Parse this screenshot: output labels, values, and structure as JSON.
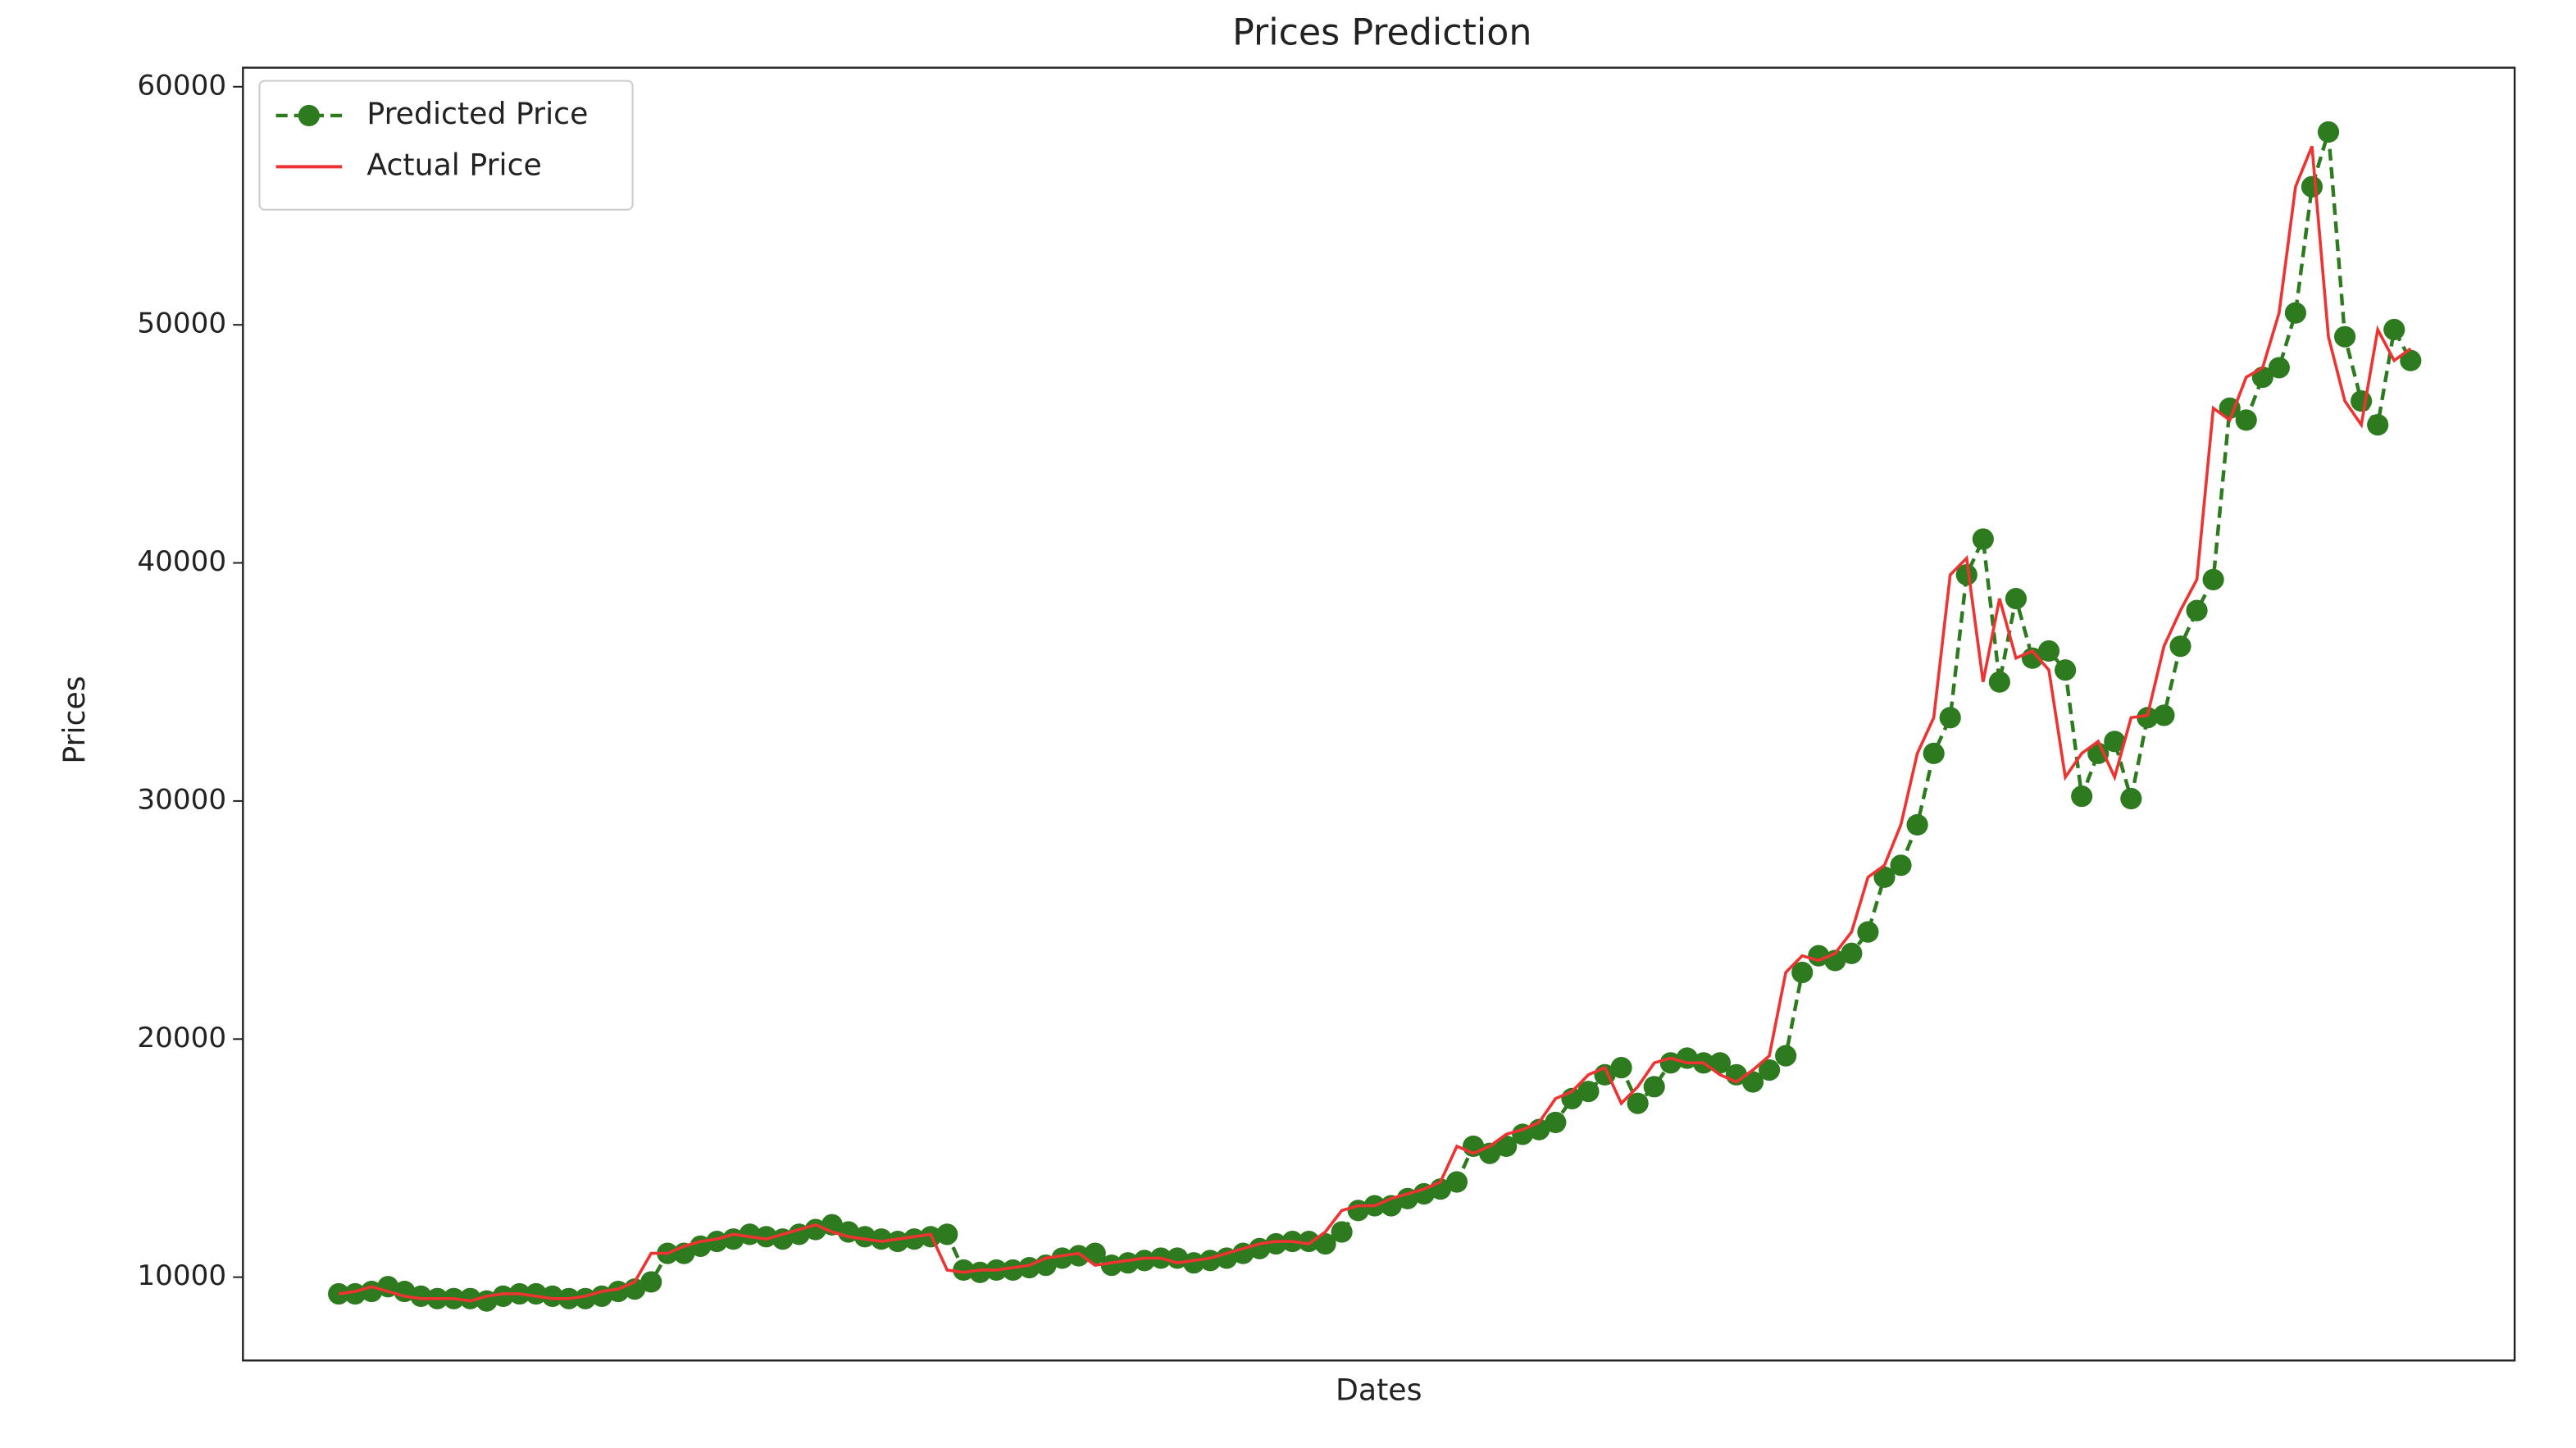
{
  "chart_data": {
    "type": "line",
    "title": "Prices Prediction",
    "xlabel": "Dates",
    "ylabel": "Prices",
    "categories": [
      null,
      null,
      null,
      null,
      null,
      null,
      null,
      null,
      null,
      null,
      null,
      null,
      null,
      null,
      null,
      null,
      null,
      null,
      null,
      null,
      null,
      null,
      null,
      null,
      null,
      null,
      null,
      null,
      null,
      null,
      null,
      null,
      null,
      null,
      null,
      null,
      null,
      null,
      null,
      null,
      null,
      null,
      null,
      null,
      null,
      null,
      null,
      null,
      null,
      null,
      null,
      null,
      null,
      null,
      null,
      null,
      null,
      null,
      null,
      null,
      null,
      null,
      null,
      null,
      null,
      null,
      null,
      null,
      null,
      null,
      null,
      null,
      null,
      null,
      null,
      null,
      null,
      null,
      null,
      null,
      null,
      null,
      null,
      null,
      null,
      null,
      null,
      null,
      null,
      null,
      null,
      null,
      null,
      null,
      null,
      null,
      null,
      null,
      null,
      null,
      null,
      null,
      null,
      null,
      null,
      null,
      null,
      null,
      null,
      null,
      null,
      null,
      null,
      null,
      null,
      null,
      null,
      null,
      null,
      null,
      null,
      null,
      null,
      null,
      null,
      null,
      null
    ],
    "series": [
      {
        "name": "Predicted Price",
        "color": "#2e7a1f",
        "style": "dashed",
        "marker": "circle",
        "values": [
          9300,
          9300,
          9400,
          9600,
          9400,
          9200,
          9100,
          9100,
          9100,
          9000,
          9200,
          9300,
          9300,
          9200,
          9100,
          9100,
          9200,
          9400,
          9500,
          9800,
          11000,
          11000,
          11300,
          11500,
          11600,
          11800,
          11700,
          11600,
          11800,
          12000,
          12200,
          11900,
          11700,
          11600,
          11500,
          11600,
          11700,
          11800,
          10300,
          10200,
          10300,
          10300,
          10400,
          10500,
          10800,
          10900,
          11000,
          10500,
          10600,
          10700,
          10800,
          10800,
          10600,
          10700,
          10800,
          11000,
          11200,
          11400,
          11500,
          11500,
          11400,
          11900,
          12800,
          13000,
          13000,
          13300,
          13500,
          13700,
          14000,
          15500,
          15200,
          15500,
          16000,
          16200,
          16500,
          17500,
          17800,
          18500,
          18800,
          17300,
          18000,
          19000,
          19200,
          19000,
          19000,
          18500,
          18200,
          18700,
          19300,
          22800,
          23500,
          23300,
          23600,
          24500,
          26800,
          27300,
          29000,
          32000,
          33500,
          39500,
          41000,
          35000,
          38500,
          36000,
          36300,
          35500,
          30200,
          32000,
          32500,
          30100,
          33500,
          33600,
          36500,
          38000,
          39300,
          46500,
          46000,
          47800,
          48200,
          50500,
          55800,
          58100,
          49500,
          46800,
          45800,
          49800,
          48500
        ]
      },
      {
        "name": "Actual Price",
        "color": "#ee3333",
        "style": "solid",
        "values": [
          9300,
          9400,
          9600,
          9400,
          9200,
          9100,
          9100,
          9100,
          9000,
          9200,
          9300,
          9300,
          9200,
          9100,
          9100,
          9200,
          9400,
          9500,
          9800,
          11000,
          11000,
          11300,
          11500,
          11600,
          11800,
          11700,
          11600,
          11800,
          12000,
          12200,
          11900,
          11700,
          11600,
          11500,
          11600,
          11700,
          11800,
          10300,
          10200,
          10300,
          10300,
          10400,
          10500,
          10800,
          10900,
          11000,
          10500,
          10600,
          10700,
          10800,
          10800,
          10600,
          10700,
          10800,
          11000,
          11200,
          11400,
          11500,
          11500,
          11400,
          11900,
          12800,
          13000,
          13000,
          13300,
          13500,
          13700,
          14000,
          15500,
          15200,
          15500,
          16000,
          16200,
          16500,
          17500,
          17800,
          18500,
          18800,
          17300,
          18000,
          19000,
          19200,
          19000,
          19000,
          18500,
          18200,
          18700,
          19300,
          22800,
          23500,
          23300,
          23600,
          24500,
          26800,
          27300,
          29000,
          32000,
          33500,
          39500,
          40200,
          35000,
          38500,
          36000,
          36300,
          35500,
          31000,
          32000,
          32500,
          31000,
          33500,
          33600,
          36500,
          38000,
          39300,
          46500,
          46000,
          47800,
          48200,
          50500,
          55800,
          57500,
          49500,
          46800,
          45800,
          49800,
          48500,
          49000
        ]
      }
    ],
    "ylim": [
      6500,
      60800
    ],
    "yticks": [
      10000,
      20000,
      30000,
      40000,
      50000,
      60000
    ],
    "grid": false,
    "legend": "upper left"
  }
}
